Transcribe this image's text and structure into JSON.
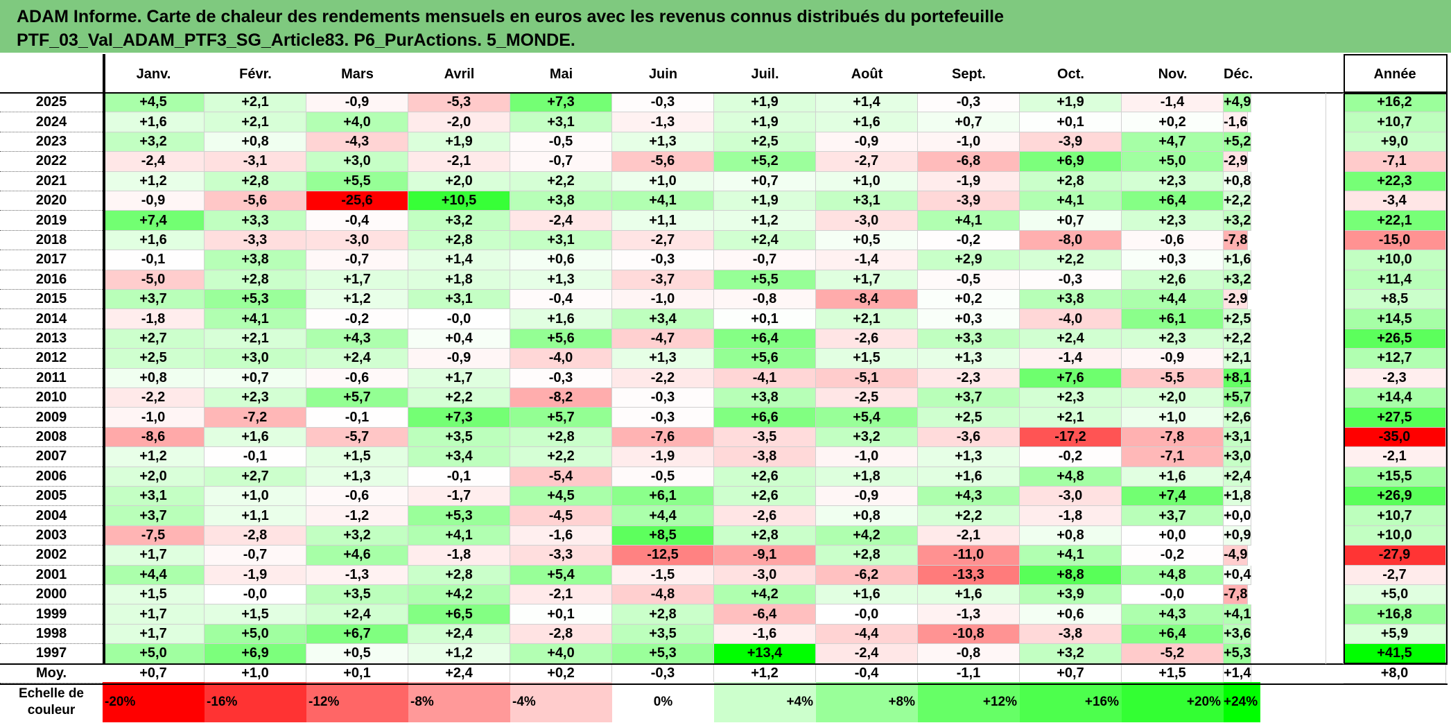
{
  "page": {
    "title_line1": "ADAM Informe. Carte de chaleur des rendements mensuels en euros avec les revenus connus distribués du portefeuille",
    "title_line2": "PTF_03_Val_ADAM_PTF3_SG_Article83. P6_PurActions. 5_MONDE.",
    "title_bg": "#7fc97f",
    "scale_label_line1": "Echelle de",
    "scale_label_line2": "couleur"
  },
  "chart_data": {
    "type": "heatmap",
    "title": "ADAM Informe. Carte de chaleur des rendements mensuels en euros avec les revenus connus distribués du portefeuille PTF_03_Val_ADAM_PTF3_SG_Article83. P6_PurActions. 5_MONDE.",
    "months": [
      "Janv.",
      "Févr.",
      "Mars",
      "Avril",
      "Mai",
      "Juin",
      "Juil.",
      "Août",
      "Sept.",
      "Oct.",
      "Nov.",
      "Déc."
    ],
    "year_header": "Année",
    "average_label": "Moy.",
    "rows": [
      {
        "year": "2025",
        "months": [
          "+4,5",
          "+2,1",
          "-0,9",
          "-5,3",
          "+7,3",
          "-0,3",
          "+1,9",
          "+1,4",
          "-0,3",
          "+1,9",
          "-1,4",
          "+4,9"
        ],
        "annual": "+16,2"
      },
      {
        "year": "2024",
        "months": [
          "+1,6",
          "+2,1",
          "+4,0",
          "-2,0",
          "+3,1",
          "-1,3",
          "+1,9",
          "+1,6",
          "+0,7",
          "+0,1",
          "+0,2",
          "-1,6"
        ],
        "annual": "+10,7"
      },
      {
        "year": "2023",
        "months": [
          "+3,2",
          "+0,8",
          "-4,3",
          "+1,9",
          "-0,5",
          "+1,3",
          "+2,5",
          "-0,9",
          "-1,0",
          "-3,9",
          "+4,7",
          "+5,2"
        ],
        "annual": "+9,0"
      },
      {
        "year": "2022",
        "months": [
          "-2,4",
          "-3,1",
          "+3,0",
          "-2,1",
          "-0,7",
          "-5,6",
          "+5,2",
          "-2,7",
          "-6,8",
          "+6,9",
          "+5,0",
          "-2,9"
        ],
        "annual": "-7,1"
      },
      {
        "year": "2021",
        "months": [
          "+1,2",
          "+2,8",
          "+5,5",
          "+2,0",
          "+2,2",
          "+1,0",
          "+0,7",
          "+1,0",
          "-1,9",
          "+2,8",
          "+2,3",
          "+0,8"
        ],
        "annual": "+22,3"
      },
      {
        "year": "2020",
        "months": [
          "-0,9",
          "-5,6",
          "-25,6",
          "+10,5",
          "+3,8",
          "+4,1",
          "+1,9",
          "+3,1",
          "-3,9",
          "+4,1",
          "+6,4",
          "+2,2"
        ],
        "annual": "-3,4"
      },
      {
        "year": "2019",
        "months": [
          "+7,4",
          "+3,3",
          "-0,4",
          "+3,2",
          "-2,4",
          "+1,1",
          "+1,2",
          "-3,0",
          "+4,1",
          "+0,7",
          "+2,3",
          "+3,2"
        ],
        "annual": "+22,1"
      },
      {
        "year": "2018",
        "months": [
          "+1,6",
          "-3,3",
          "-3,0",
          "+2,8",
          "+3,1",
          "-2,7",
          "+2,4",
          "+0,5",
          "-0,2",
          "-8,0",
          "-0,6",
          "-7,8"
        ],
        "annual": "-15,0"
      },
      {
        "year": "2017",
        "months": [
          "-0,1",
          "+3,8",
          "-0,7",
          "+1,4",
          "+0,6",
          "-0,3",
          "-0,7",
          "-1,4",
          "+2,9",
          "+2,2",
          "+0,3",
          "+1,6"
        ],
        "annual": "+10,0"
      },
      {
        "year": "2016",
        "months": [
          "-5,0",
          "+2,8",
          "+1,7",
          "+1,8",
          "+1,3",
          "-3,7",
          "+5,5",
          "+1,7",
          "-0,5",
          "-0,3",
          "+2,6",
          "+3,2"
        ],
        "annual": "+11,4"
      },
      {
        "year": "2015",
        "months": [
          "+3,7",
          "+5,3",
          "+1,2",
          "+3,1",
          "-0,4",
          "-1,0",
          "-0,8",
          "-8,4",
          "+0,2",
          "+3,8",
          "+4,4",
          "-2,9"
        ],
        "annual": "+8,5"
      },
      {
        "year": "2014",
        "months": [
          "-1,8",
          "+4,1",
          "-0,2",
          "-0,0",
          "+1,6",
          "+3,4",
          "+0,1",
          "+2,1",
          "+0,3",
          "-4,0",
          "+6,1",
          "+2,5"
        ],
        "annual": "+14,5"
      },
      {
        "year": "2013",
        "months": [
          "+2,7",
          "+2,1",
          "+4,3",
          "+0,4",
          "+5,6",
          "-4,7",
          "+6,4",
          "-2,6",
          "+3,3",
          "+2,4",
          "+2,3",
          "+2,2"
        ],
        "annual": "+26,5"
      },
      {
        "year": "2012",
        "months": [
          "+2,5",
          "+3,0",
          "+2,4",
          "-0,9",
          "-4,0",
          "+1,3",
          "+5,6",
          "+1,5",
          "+1,3",
          "-1,4",
          "-0,9",
          "+2,1"
        ],
        "annual": "+12,7"
      },
      {
        "year": "2011",
        "months": [
          "+0,8",
          "+0,7",
          "-0,6",
          "+1,7",
          "-0,3",
          "-2,2",
          "-4,1",
          "-5,1",
          "-2,3",
          "+7,6",
          "-5,5",
          "+8,1"
        ],
        "annual": "-2,3"
      },
      {
        "year": "2010",
        "months": [
          "-2,2",
          "+2,3",
          "+5,7",
          "+2,2",
          "-8,2",
          "-0,3",
          "+3,8",
          "-2,5",
          "+3,7",
          "+2,3",
          "+2,0",
          "+5,7"
        ],
        "annual": "+14,4"
      },
      {
        "year": "2009",
        "months": [
          "-1,0",
          "-7,2",
          "-0,1",
          "+7,3",
          "+5,7",
          "-0,3",
          "+6,6",
          "+5,4",
          "+2,5",
          "+2,1",
          "+1,0",
          "+2,6"
        ],
        "annual": "+27,5"
      },
      {
        "year": "2008",
        "months": [
          "-8,6",
          "+1,6",
          "-5,7",
          "+3,5",
          "+2,8",
          "-7,6",
          "-3,5",
          "+3,2",
          "-3,6",
          "-17,2",
          "-7,8",
          "+3,1"
        ],
        "annual": "-35,0"
      },
      {
        "year": "2007",
        "months": [
          "+1,2",
          "-0,1",
          "+1,5",
          "+3,4",
          "+2,2",
          "-1,9",
          "-3,8",
          "-1,0",
          "+1,3",
          "-0,2",
          "-7,1",
          "+3,0"
        ],
        "annual": "-2,1"
      },
      {
        "year": "2006",
        "months": [
          "+2,0",
          "+2,7",
          "+1,3",
          "-0,1",
          "-5,4",
          "-0,5",
          "+2,6",
          "+1,8",
          "+1,6",
          "+4,8",
          "+1,6",
          "+2,4"
        ],
        "annual": "+15,5"
      },
      {
        "year": "2005",
        "months": [
          "+3,1",
          "+1,0",
          "-0,6",
          "-1,7",
          "+4,5",
          "+6,1",
          "+2,6",
          "-0,9",
          "+4,3",
          "-3,0",
          "+7,4",
          "+1,8"
        ],
        "annual": "+26,9"
      },
      {
        "year": "2004",
        "months": [
          "+3,7",
          "+1,1",
          "-1,2",
          "+5,3",
          "-4,5",
          "+4,4",
          "-2,6",
          "+0,8",
          "+2,2",
          "-1,8",
          "+3,7",
          "+0,0"
        ],
        "annual": "+10,7"
      },
      {
        "year": "2003",
        "months": [
          "-7,5",
          "-2,8",
          "+3,2",
          "+4,1",
          "-1,6",
          "+8,5",
          "+2,8",
          "+4,2",
          "-2,1",
          "+0,8",
          "+0,0",
          "+0,9"
        ],
        "annual": "+10,0"
      },
      {
        "year": "2002",
        "months": [
          "+1,7",
          "-0,7",
          "+4,6",
          "-1,8",
          "-3,3",
          "-12,5",
          "-9,1",
          "+2,8",
          "-11,0",
          "+4,1",
          "-0,2",
          "-4,9"
        ],
        "annual": "-27,9"
      },
      {
        "year": "2001",
        "months": [
          "+4,4",
          "-1,9",
          "-1,3",
          "+2,8",
          "+5,4",
          "-1,5",
          "-3,0",
          "-6,2",
          "-13,3",
          "+8,8",
          "+4,8",
          "+0,4"
        ],
        "annual": "-2,7"
      },
      {
        "year": "2000",
        "months": [
          "+1,5",
          "-0,0",
          "+3,5",
          "+4,2",
          "-2,1",
          "-4,8",
          "+4,2",
          "+1,6",
          "+1,6",
          "+3,9",
          "-0,0",
          "-7,8"
        ],
        "annual": "+5,0"
      },
      {
        "year": "1999",
        "months": [
          "+1,7",
          "+1,5",
          "+2,4",
          "+6,5",
          "+0,1",
          "+2,8",
          "-6,4",
          "-0,0",
          "-1,3",
          "+0,6",
          "+4,3",
          "+4,1"
        ],
        "annual": "+16,8"
      },
      {
        "year": "1998",
        "months": [
          "+1,7",
          "+5,0",
          "+6,7",
          "+2,4",
          "-2,8",
          "+3,5",
          "-1,6",
          "-4,4",
          "-10,8",
          "-3,8",
          "+6,4",
          "+3,6"
        ],
        "annual": "+5,9"
      },
      {
        "year": "1997",
        "months": [
          "+5,0",
          "+6,9",
          "+0,5",
          "+1,2",
          "+4,0",
          "+5,3",
          "+13,4",
          "-2,4",
          "-0,8",
          "+3,2",
          "-5,2",
          "+5,3"
        ],
        "annual": "+41,5"
      }
    ],
    "average": {
      "months": [
        "+0,7",
        "+1,0",
        "+0,1",
        "+2,4",
        "+0,2",
        "-0,3",
        "+1,2",
        "-0,4",
        "-1,1",
        "+0,7",
        "+1,5",
        "+1,4"
      ],
      "annual": "+8,0"
    },
    "color_scale": [
      {
        "label": "-20%",
        "value": -20,
        "color": "#ff0000"
      },
      {
        "label": "-16%",
        "value": -16,
        "color": "#ff3333"
      },
      {
        "label": "-12%",
        "value": -12,
        "color": "#ff6666"
      },
      {
        "label": "-8%",
        "value": -8,
        "color": "#ff9999"
      },
      {
        "label": "-4%",
        "value": -4,
        "color": "#ffcccc"
      },
      {
        "label": "0%",
        "value": 0,
        "color": "#ffffff"
      },
      {
        "label": "+4%",
        "value": 4,
        "color": "#ccffcc"
      },
      {
        "label": "+8%",
        "value": 8,
        "color": "#99ff99"
      },
      {
        "label": "+12%",
        "value": 12,
        "color": "#66ff66"
      },
      {
        "label": "+16%",
        "value": 16,
        "color": "#4dff4d"
      },
      {
        "label": "+20%",
        "value": 20,
        "color": "#33ff33"
      },
      {
        "label": "+24%",
        "value": 24,
        "color": "#00ff00"
      }
    ],
    "monthly_saturation": {
      "negative": -25.6,
      "positive": 13.4
    },
    "annual_saturation": {
      "negative": -35.0,
      "positive": 41.5
    }
  }
}
